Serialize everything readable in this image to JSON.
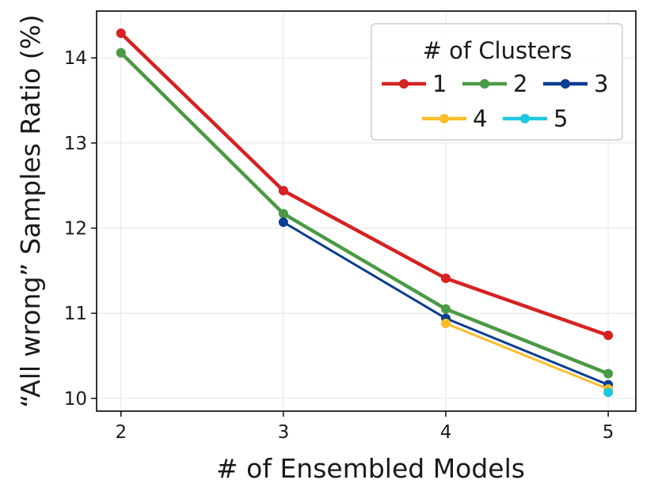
{
  "chart_data": {
    "type": "line",
    "xlabel": "# of Ensembled Models",
    "ylabel": "“All wrong” Samples Ratio (%)",
    "x_ticks": [
      "2",
      "3",
      "4",
      "5"
    ],
    "y_ticks": [
      "10",
      "11",
      "12",
      "13",
      "14"
    ],
    "xlim": [
      1.85,
      5.17
    ],
    "ylim": [
      9.85,
      14.55
    ],
    "grid": true,
    "legend": {
      "title": "# of Clusters",
      "placement": "top-right",
      "columns": 3
    },
    "series": [
      {
        "name": "1",
        "color": "#d62222",
        "x": [
          2,
          3,
          4,
          5
        ],
        "y": [
          14.29,
          12.44,
          11.41,
          10.74
        ]
      },
      {
        "name": "2",
        "color": "#4a9a45",
        "x": [
          2,
          3,
          4,
          5
        ],
        "y": [
          14.06,
          12.17,
          11.05,
          10.29
        ]
      },
      {
        "name": "3",
        "color": "#0b3d91",
        "x": [
          3,
          4,
          5
        ],
        "y": [
          12.07,
          10.94,
          10.16
        ]
      },
      {
        "name": "4",
        "color": "#fbbd2b",
        "x": [
          4,
          5
        ],
        "y": [
          10.88,
          10.11
        ]
      },
      {
        "name": "5",
        "color": "#1ec8e0",
        "x": [
          5
        ],
        "y": [
          10.07
        ]
      }
    ]
  }
}
